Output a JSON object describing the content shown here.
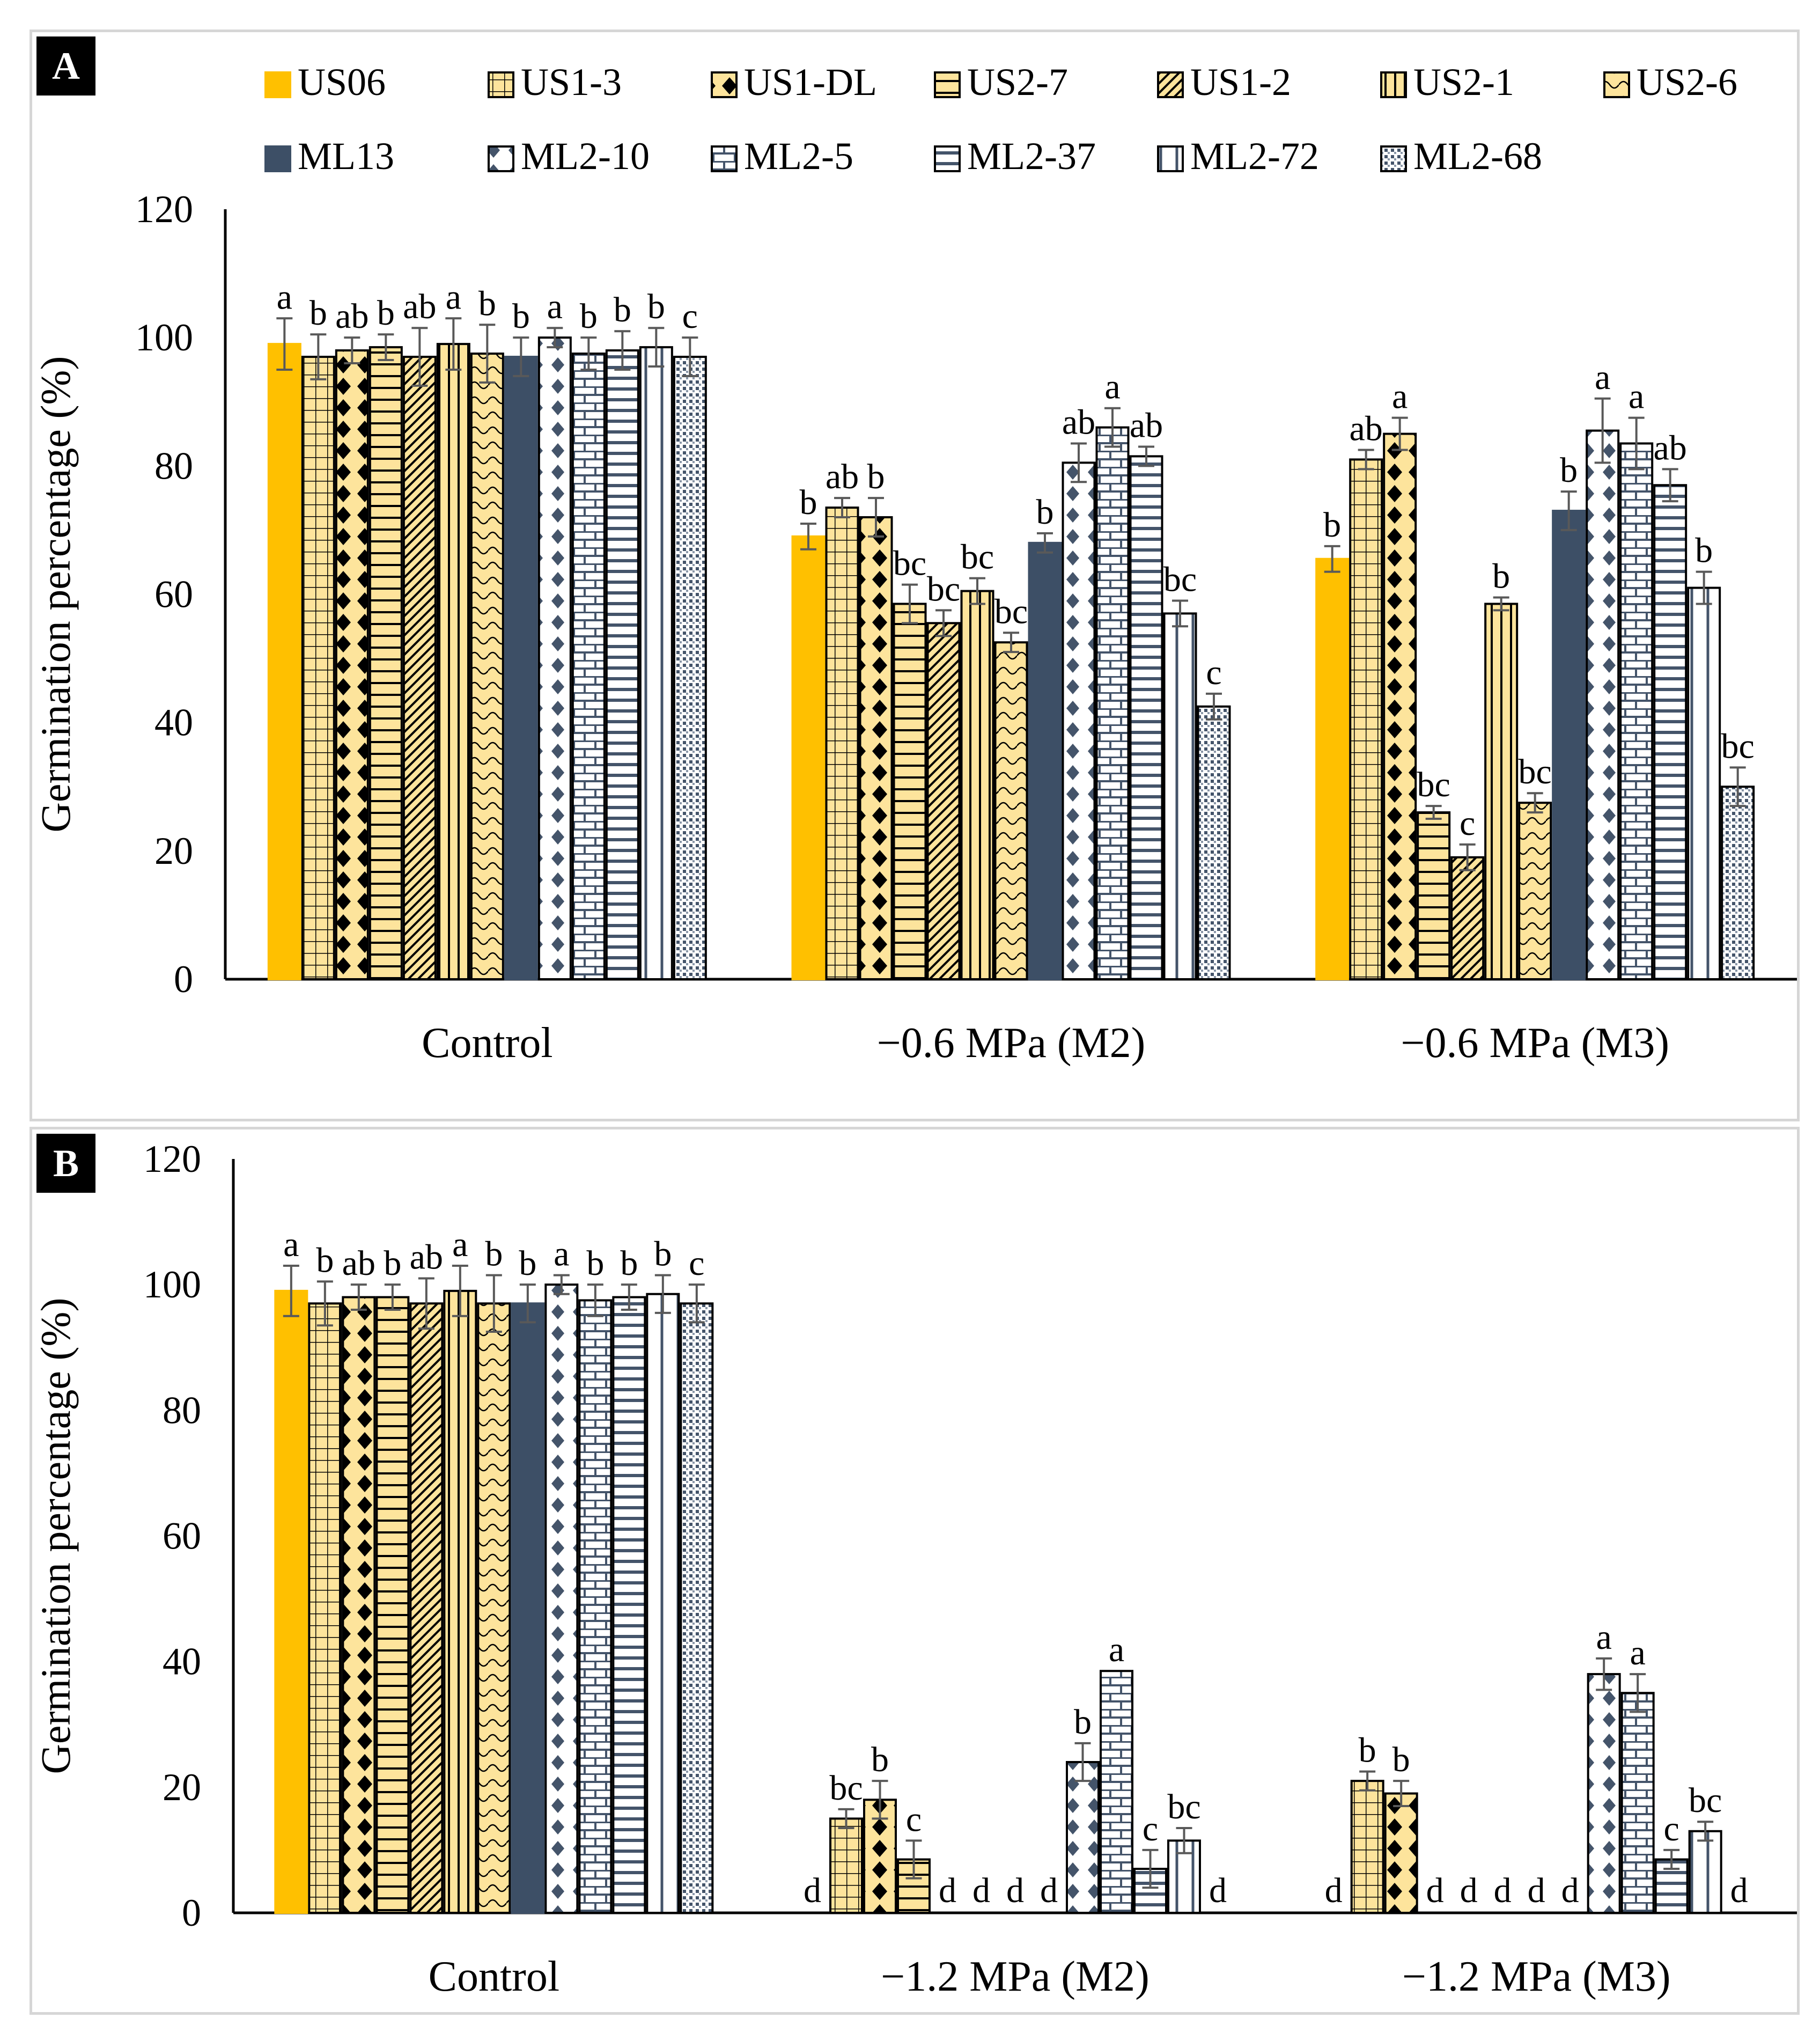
{
  "colors": {
    "us_fill": "#fde49c",
    "us06_fill": "#ffc000",
    "ml_fill": "#445469",
    "ml13_fill": "#3d4f66",
    "pattern_dark": "#000000",
    "pattern_ml": "#44546a",
    "axis": "#000000",
    "error_bar": "#595959"
  },
  "legend": [
    {
      "name": "US06",
      "pattern": "solid-gold"
    },
    {
      "name": "US1-3",
      "pattern": "grid"
    },
    {
      "name": "US1-DL",
      "pattern": "diamond"
    },
    {
      "name": "US2-7",
      "pattern": "hstripe"
    },
    {
      "name": "US1-2",
      "pattern": "diag"
    },
    {
      "name": "US2-1",
      "pattern": "vstripe"
    },
    {
      "name": "US2-6",
      "pattern": "wave"
    },
    {
      "name": "ML13",
      "pattern": "solid-navy"
    },
    {
      "name": "ML2-10",
      "pattern": "ml-diamond"
    },
    {
      "name": "ML2-5",
      "pattern": "ml-brick"
    },
    {
      "name": "ML2-37",
      "pattern": "ml-hstripe"
    },
    {
      "name": "ML2-72",
      "pattern": "ml-vstripe"
    },
    {
      "name": "ML2-68",
      "pattern": "ml-dots"
    }
  ],
  "chart_data": [
    {
      "panel": "A",
      "type": "bar",
      "ylabel": "Germination percentage (%)",
      "ylim": [
        0,
        120
      ],
      "yticks": [
        0,
        20,
        40,
        60,
        80,
        100,
        120
      ],
      "categories": [
        "Control",
        "−0.6 MPa (M2)",
        "−0.6 MPa (M3)"
      ],
      "series": [
        {
          "name": "US06",
          "values": [
            99,
            69,
            65.5
          ],
          "errors": [
            4,
            2,
            2
          ],
          "letters": [
            "a",
            "b",
            "b"
          ]
        },
        {
          "name": "US1-3",
          "values": [
            97,
            73.5,
            81
          ],
          "errors": [
            3.5,
            1.5,
            1.5
          ],
          "letters": [
            "b",
            "ab",
            "ab"
          ]
        },
        {
          "name": "US1-DL",
          "values": [
            98,
            72,
            85
          ],
          "errors": [
            2,
            3,
            2.5
          ],
          "letters": [
            "ab",
            "b",
            "a"
          ]
        },
        {
          "name": "US2-7",
          "values": [
            98.5,
            58.5,
            26
          ],
          "errors": [
            2,
            3,
            1
          ],
          "letters": [
            "b",
            "bc",
            "bc"
          ]
        },
        {
          "name": "US1-2",
          "values": [
            97,
            55.5,
            19
          ],
          "errors": [
            4.5,
            2,
            2
          ],
          "letters": [
            "ab",
            "bc",
            "c"
          ]
        },
        {
          "name": "US2-1",
          "values": [
            99,
            60.5,
            58.5
          ],
          "errors": [
            4,
            2,
            1
          ],
          "letters": [
            "a",
            "bc",
            "b"
          ]
        },
        {
          "name": "US2-6",
          "values": [
            97.5,
            52.5,
            27.5
          ],
          "errors": [
            4.5,
            1.5,
            1.5
          ],
          "letters": [
            "b",
            "bc",
            "bc"
          ]
        },
        {
          "name": "ML13",
          "values": [
            97,
            68,
            73
          ],
          "errors": [
            3,
            1.5,
            3
          ],
          "letters": [
            "b",
            "b",
            "b"
          ]
        },
        {
          "name": "ML2-10",
          "values": [
            100,
            80.5,
            85.5
          ],
          "errors": [
            1.5,
            3,
            5
          ],
          "letters": [
            "a",
            "ab",
            "a"
          ]
        },
        {
          "name": "ML2-5",
          "values": [
            97.5,
            86,
            83.5
          ],
          "errors": [
            2.5,
            3,
            4
          ],
          "letters": [
            "b",
            "a",
            "a"
          ]
        },
        {
          "name": "ML2-37",
          "values": [
            98,
            81.5,
            77
          ],
          "errors": [
            3,
            1.5,
            2.5
          ],
          "letters": [
            "b",
            "ab",
            "ab"
          ]
        },
        {
          "name": "ML2-72",
          "values": [
            98.5,
            57,
            61
          ],
          "errors": [
            3,
            2,
            2.5
          ],
          "letters": [
            "b",
            "bc",
            "b"
          ]
        },
        {
          "name": "ML2-68",
          "values": [
            97,
            42.5,
            30
          ],
          "errors": [
            3,
            2,
            3
          ],
          "letters": [
            "c",
            "c",
            "bc"
          ]
        }
      ]
    },
    {
      "panel": "B",
      "type": "bar",
      "ylabel": "Germination percentage (%)",
      "ylim": [
        0,
        120
      ],
      "yticks": [
        0,
        20,
        40,
        60,
        80,
        100,
        120
      ],
      "categories": [
        "Control",
        "−1.2 MPa (M2)",
        "−1.2 MPa (M3)"
      ],
      "series": [
        {
          "name": "US06",
          "values": [
            99,
            0,
            0
          ],
          "errors": [
            4,
            0,
            0
          ],
          "letters": [
            "a",
            "d",
            "d"
          ]
        },
        {
          "name": "US1-3",
          "values": [
            97,
            15,
            21
          ],
          "errors": [
            3.5,
            1.5,
            1.5
          ],
          "letters": [
            "b",
            "bc",
            "b"
          ]
        },
        {
          "name": "US1-DL",
          "values": [
            98,
            18,
            19
          ],
          "errors": [
            2,
            3,
            2
          ],
          "letters": [
            "ab",
            "b",
            "b"
          ]
        },
        {
          "name": "US2-7",
          "values": [
            98,
            8.5,
            0
          ],
          "errors": [
            2,
            3,
            0
          ],
          "letters": [
            "b",
            "c",
            "d"
          ]
        },
        {
          "name": "US1-2",
          "values": [
            97,
            0,
            0
          ],
          "errors": [
            4,
            0,
            0
          ],
          "letters": [
            "ab",
            "d",
            "d"
          ]
        },
        {
          "name": "US2-1",
          "values": [
            99,
            0,
            0
          ],
          "errors": [
            4,
            0,
            0
          ],
          "letters": [
            "a",
            "d",
            "d"
          ]
        },
        {
          "name": "US2-6",
          "values": [
            97,
            0,
            0
          ],
          "errors": [
            4.5,
            0,
            0
          ],
          "letters": [
            "b",
            "d",
            "d"
          ]
        },
        {
          "name": "ML13",
          "values": [
            97,
            0,
            0
          ],
          "errors": [
            3,
            0,
            0
          ],
          "letters": [
            "b",
            "d",
            "d"
          ]
        },
        {
          "name": "ML2-10",
          "values": [
            100,
            24,
            38
          ],
          "errors": [
            1.5,
            3,
            2.5
          ],
          "letters": [
            "a",
            "b",
            "a"
          ]
        },
        {
          "name": "ML2-5",
          "values": [
            97.5,
            38.5,
            35
          ],
          "errors": [
            2.5,
            0,
            3
          ],
          "letters": [
            "b",
            "a",
            "a"
          ]
        },
        {
          "name": "ML2-37",
          "values": [
            98,
            7,
            8.5
          ],
          "errors": [
            2,
            3,
            1.5
          ],
          "letters": [
            "b",
            "c",
            "c"
          ]
        },
        {
          "name": "ML2-72",
          "values": [
            98.5,
            11.5,
            13
          ],
          "errors": [
            3,
            2,
            1.5
          ],
          "letters": [
            "b",
            "bc",
            "bc"
          ]
        },
        {
          "name": "ML2-68",
          "values": [
            97,
            0,
            0
          ],
          "errors": [
            3,
            0,
            0
          ],
          "letters": [
            "c",
            "d",
            "d"
          ]
        }
      ]
    }
  ]
}
